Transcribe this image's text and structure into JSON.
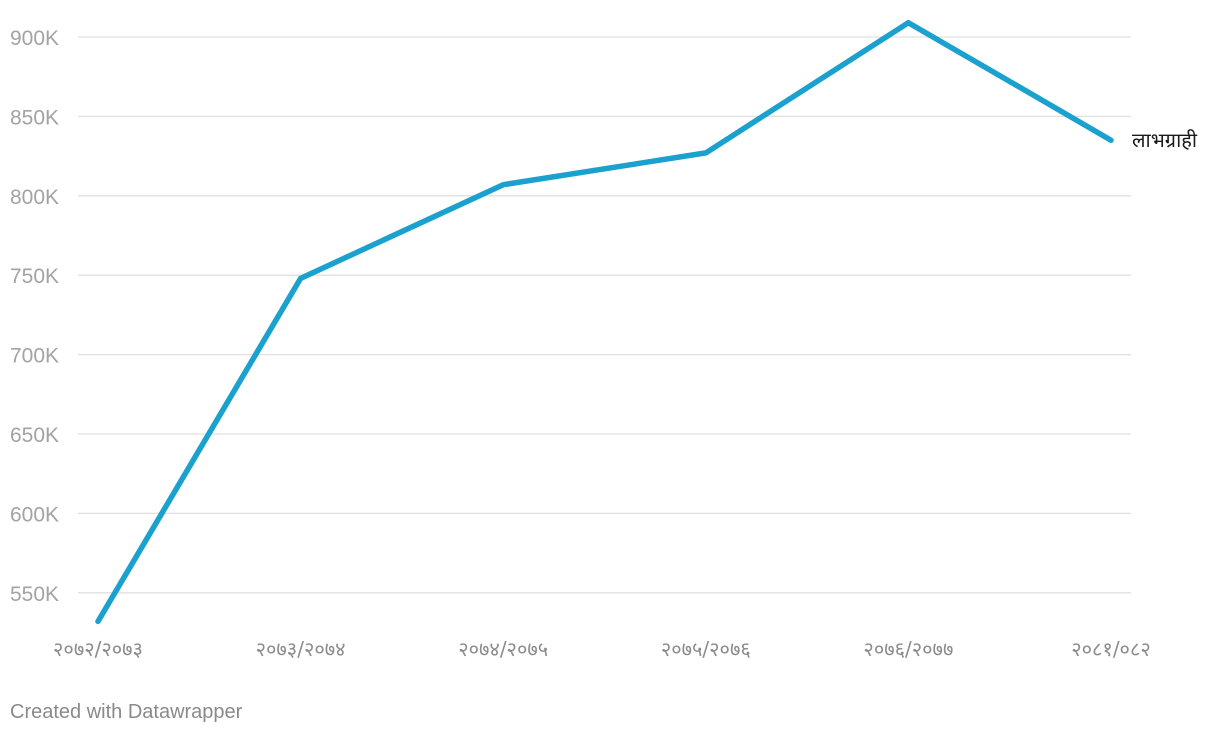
{
  "chart_data": {
    "type": "line",
    "categories": [
      "२०७२/२०७३",
      "२०७३/२०७४",
      "२०७४/२०७५",
      "२०७५/२०७६",
      "२०७६/२०७७",
      "२०८१/०८२"
    ],
    "y_ticks": [
      550000,
      600000,
      650000,
      700000,
      750000,
      800000,
      850000,
      900000
    ],
    "y_tick_labels": [
      "550K",
      "600K",
      "650K",
      "700K",
      "750K",
      "800K",
      "850K",
      "900K"
    ],
    "ylim": [
      530000,
      910000
    ],
    "grid": true,
    "series": [
      {
        "name": "लाभग्राही",
        "values": [
          532000,
          748000,
          807000,
          827000,
          909000,
          835000
        ],
        "color": "#1aa1ce"
      }
    ],
    "title": "",
    "xlabel": "",
    "ylabel": ""
  },
  "footer": {
    "credit": "Created with Datawrapper"
  }
}
